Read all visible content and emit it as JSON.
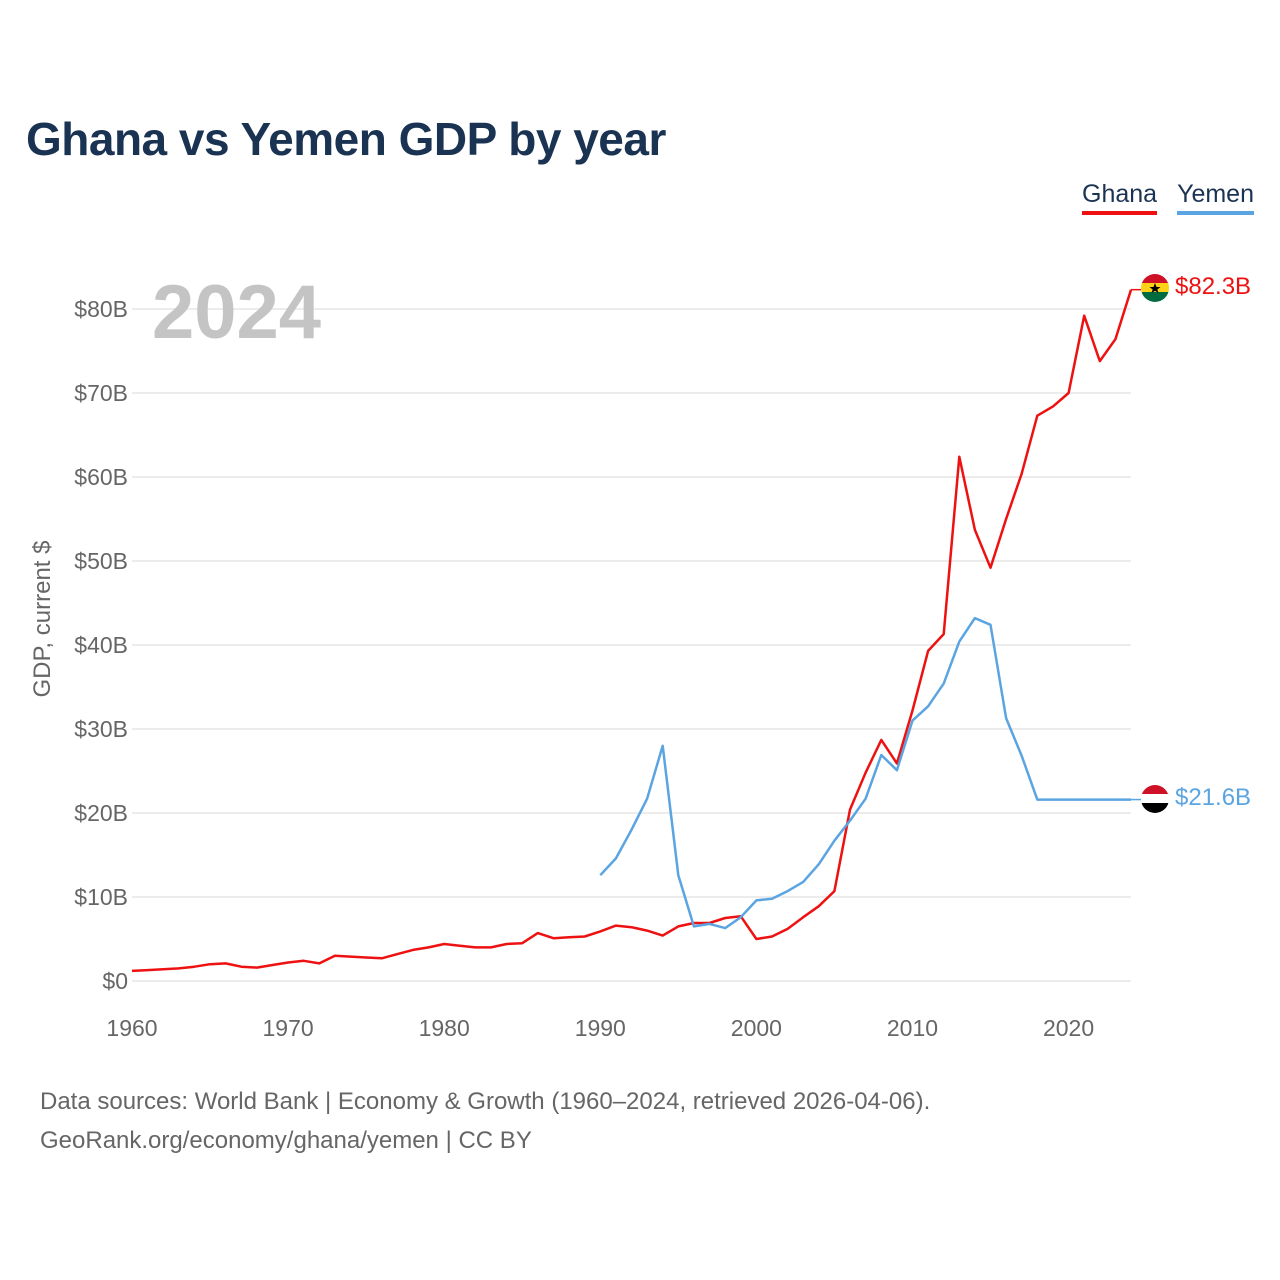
{
  "title": "Ghana vs Yemen GDP by year",
  "legend": {
    "ghana": "Ghana",
    "yemen": "Yemen"
  },
  "year_watermark": "2024",
  "end_labels": {
    "ghana": "$82.3B",
    "yemen": "$21.6B"
  },
  "source": {
    "line1": "Data sources: World Bank | Economy & Growth (1960–2024, retrieved 2026-04-06).",
    "line2": "GeoRank.org/economy/ghana/yemen | CC BY"
  },
  "colors": {
    "ghana": "#ee1111",
    "yemen": "#5ba4e2",
    "title": "#1b3353",
    "grid": "#e6e6e6",
    "tick": "#666666"
  },
  "chart_data": {
    "type": "line",
    "title": "Ghana vs Yemen GDP by year",
    "xlabel": "",
    "ylabel": "GDP, current $",
    "xlim": [
      1960,
      2024
    ],
    "ylim": [
      0,
      80
    ],
    "y_unit": "billion USD",
    "x_ticks": [
      1960,
      1970,
      1980,
      1990,
      2000,
      2010,
      2020
    ],
    "x_tick_labels": [
      "1960",
      "1970",
      "1980",
      "1990",
      "2000",
      "2010",
      "2020"
    ],
    "y_ticks": [
      0,
      10,
      20,
      30,
      40,
      50,
      60,
      70,
      80
    ],
    "y_tick_labels": [
      "$0",
      "$10B",
      "$20B",
      "$30B",
      "$40B",
      "$50B",
      "$60B",
      "$70B",
      "$80B"
    ],
    "grid": true,
    "legend_position": "top-right",
    "series": [
      {
        "name": "Ghana",
        "x": [
          1960,
          1961,
          1962,
          1963,
          1964,
          1965,
          1966,
          1967,
          1968,
          1969,
          1970,
          1971,
          1972,
          1973,
          1974,
          1975,
          1976,
          1977,
          1978,
          1979,
          1980,
          1981,
          1982,
          1983,
          1984,
          1985,
          1986,
          1987,
          1988,
          1989,
          1990,
          1991,
          1992,
          1993,
          1994,
          1995,
          1996,
          1997,
          1998,
          1999,
          2000,
          2001,
          2002,
          2003,
          2004,
          2005,
          2006,
          2007,
          2008,
          2009,
          2010,
          2011,
          2012,
          2013,
          2014,
          2015,
          2016,
          2017,
          2018,
          2019,
          2020,
          2021,
          2022,
          2023,
          2024
        ],
        "values": [
          1.2,
          1.3,
          1.4,
          1.5,
          1.7,
          2.0,
          2.1,
          1.7,
          1.6,
          1.9,
          2.2,
          2.4,
          2.1,
          3.0,
          2.9,
          2.8,
          2.7,
          3.2,
          3.7,
          4.0,
          4.4,
          4.2,
          4.0,
          4.0,
          4.4,
          4.5,
          5.7,
          5.1,
          5.2,
          5.3,
          5.9,
          6.6,
          6.4,
          6.0,
          5.4,
          6.5,
          6.9,
          6.9,
          7.5,
          7.7,
          5.0,
          5.3,
          6.2,
          7.6,
          8.9,
          10.7,
          20.4,
          24.8,
          28.7,
          25.9,
          32.2,
          39.3,
          41.3,
          62.4,
          53.7,
          49.2,
          55.0,
          60.4,
          67.3,
          68.4,
          70.0,
          79.2,
          73.8,
          76.4,
          82.3
        ]
      },
      {
        "name": "Yemen",
        "x": [
          1990,
          1991,
          1992,
          1993,
          1994,
          1995,
          1996,
          1997,
          1998,
          1999,
          2000,
          2001,
          2002,
          2003,
          2004,
          2005,
          2006,
          2007,
          2008,
          2009,
          2010,
          2011,
          2012,
          2013,
          2014,
          2015,
          2016,
          2017,
          2018,
          2019,
          2020,
          2021,
          2022,
          2023,
          2024
        ],
        "values": [
          12.6,
          14.6,
          18.0,
          21.7,
          28.0,
          12.6,
          6.5,
          6.8,
          6.3,
          7.6,
          9.6,
          9.8,
          10.7,
          11.8,
          13.9,
          16.7,
          19.1,
          21.7,
          26.9,
          25.1,
          31.0,
          32.7,
          35.4,
          40.4,
          43.2,
          42.4,
          31.3,
          26.8,
          21.6,
          21.6,
          21.6,
          21.6,
          21.6,
          21.6,
          21.6
        ]
      }
    ]
  }
}
